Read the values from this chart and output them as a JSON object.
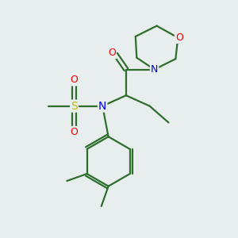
{
  "background_color": "#e8eeee",
  "bond_color": "#2d6e2d",
  "atom_colors": {
    "N": "#0000ee",
    "O": "#ee0000",
    "S": "#bbbb00",
    "C": "#2d6e2d"
  },
  "figsize": [
    3.0,
    3.0
  ],
  "dpi": 100,
  "lw": 1.6,
  "fontsize": 10
}
